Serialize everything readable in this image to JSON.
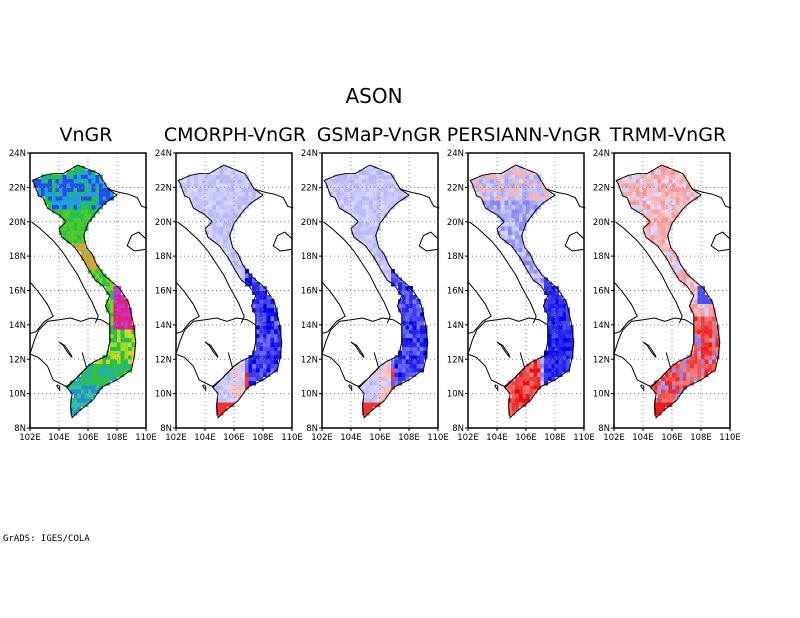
{
  "title": "ASON",
  "credit": "GrADS: IGES/COLA",
  "y_ticks": [
    "8N",
    "10N",
    "12N",
    "14N",
    "16N",
    "18N",
    "20N",
    "22N",
    "24N"
  ],
  "x_ticks": [
    "102E",
    "104E",
    "106E",
    "108E",
    "110E"
  ],
  "panels": [
    {
      "title": "VnGR",
      "kind": "absolute"
    },
    {
      "title": "CMORPH-VnGR",
      "kind": "difference",
      "tone": "blue"
    },
    {
      "title": "GSMaP-VnGR",
      "kind": "difference",
      "tone": "blue"
    },
    {
      "title": "PERSIANN-VnGR",
      "kind": "difference",
      "tone": "mixed"
    },
    {
      "title": "TRMM-VnGR",
      "kind": "difference",
      "tone": "red"
    }
  ],
  "colors": {
    "diff_negative": "#0000ee",
    "diff_positive": "#ee0000",
    "abs_low": "#2b6cf0",
    "abs_mid": "#22c34a",
    "abs_high": "#e0207a"
  }
}
